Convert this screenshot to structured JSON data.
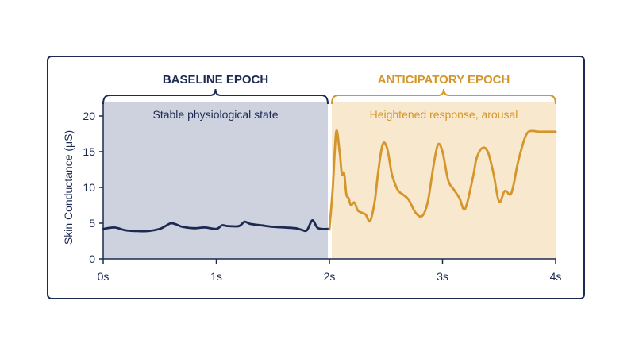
{
  "chart_data": {
    "type": "line",
    "xlabel": "",
    "ylabel": "Skin Conductance (μS)",
    "xlim": [
      0,
      4
    ],
    "ylim": [
      0,
      20
    ],
    "x_ticks": [
      "0s",
      "1s",
      "2s",
      "3s",
      "4s"
    ],
    "y_ticks": [
      "0",
      "5",
      "10",
      "15",
      "20"
    ],
    "grid": false,
    "regions": [
      {
        "name": "BASELINE EPOCH",
        "label": "Stable physiological state",
        "x_range": [
          0,
          2
        ],
        "color": "#1c2a52",
        "fill": "#cdd2de"
      },
      {
        "name": "ANTICIPATORY EPOCH",
        "label": "Heightened response, arousal",
        "x_range": [
          2,
          4
        ],
        "color": "#d4962a",
        "fill": "#f8e8ce"
      }
    ],
    "series": [
      {
        "color": "#1c2a52",
        "x": [
          0,
          0.1,
          0.2,
          0.3,
          0.4,
          0.5,
          0.55,
          0.6,
          0.65,
          0.7,
          0.8,
          0.9,
          1.0,
          1.05,
          1.1,
          1.2,
          1.25,
          1.3,
          1.4,
          1.5,
          1.6,
          1.7,
          1.75,
          1.8,
          1.85,
          1.9,
          2.0
        ],
        "y": [
          4.2,
          4.4,
          4.0,
          3.9,
          3.9,
          4.2,
          4.6,
          5.0,
          4.8,
          4.5,
          4.3,
          4.4,
          4.2,
          4.7,
          4.6,
          4.6,
          5.2,
          4.9,
          4.7,
          4.5,
          4.4,
          4.3,
          4.1,
          4.0,
          5.4,
          4.3,
          4.2
        ]
      },
      {
        "color": "#d4962a",
        "x": [
          2.0,
          2.03,
          2.06,
          2.09,
          2.11,
          2.13,
          2.15,
          2.17,
          2.19,
          2.22,
          2.25,
          2.28,
          2.32,
          2.36,
          2.4,
          2.43,
          2.47,
          2.51,
          2.55,
          2.58,
          2.61,
          2.65,
          2.7,
          2.76,
          2.82,
          2.87,
          2.92,
          2.96,
          3.0,
          3.05,
          3.1,
          3.15,
          3.2,
          3.27,
          3.3,
          3.35,
          3.4,
          3.45,
          3.5,
          3.55,
          3.6,
          3.63,
          3.66,
          3.7,
          3.73,
          3.76,
          3.8,
          3.85,
          3.9,
          3.95,
          4.0
        ],
        "y": [
          4.1,
          10.0,
          17.8,
          15.0,
          11.9,
          12.0,
          9.0,
          8.5,
          7.5,
          7.9,
          6.8,
          6.5,
          6.2,
          5.3,
          8.0,
          12.0,
          16.0,
          15.5,
          12.0,
          10.5,
          9.5,
          9.0,
          8.3,
          6.5,
          6.0,
          8.0,
          13.0,
          16.0,
          15.0,
          11.0,
          9.7,
          8.5,
          7.0,
          11.5,
          14.0,
          15.5,
          15.0,
          12.0,
          8.0,
          9.5,
          9.0,
          10.5,
          13.0,
          15.5,
          17.0,
          17.8,
          17.9,
          17.8,
          17.8,
          17.8,
          17.8
        ]
      }
    ]
  }
}
